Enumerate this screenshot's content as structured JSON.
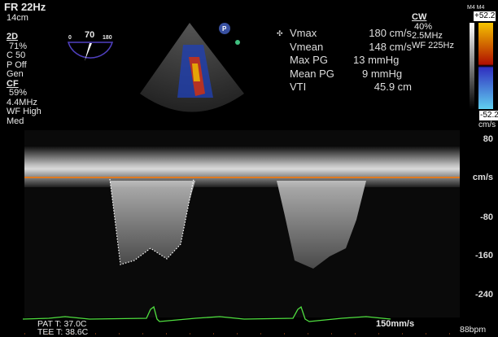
{
  "header": {
    "frame_rate": "FR 22Hz",
    "depth": "14cm"
  },
  "mode_2d": {
    "title": "2D",
    "gain": "71%",
    "compression": "C 50",
    "persistence": "P Off",
    "preset": "Gen"
  },
  "color_flow": {
    "title": "CF",
    "gain": "59%",
    "frequency": "4.4MHz",
    "wall_filter": "WF High",
    "setting": "Med"
  },
  "angle_indicator": {
    "min": "0",
    "value": "70",
    "max": "180"
  },
  "probe_marker": "P",
  "measurements": [
    {
      "label": "Vmax",
      "value": "180 cm/s"
    },
    {
      "label": "Vmean",
      "value": "148 cm/s"
    },
    {
      "label": "Max PG",
      "value": "13 mmHg"
    },
    {
      "label": "Mean PG",
      "value": "9 mmHg"
    },
    {
      "label": "VTI",
      "value": "45.9 cm"
    }
  ],
  "cw": {
    "title": "CW",
    "gain": "40%",
    "frequency": "2.5MHz",
    "wall_filter": "WF 225Hz"
  },
  "color_bar": {
    "maps": "M4 M4",
    "max": "+52.2",
    "min": "-52.2",
    "unit": "cm/s",
    "colors": [
      "#f5c400",
      "#b01000",
      "#3030c0",
      "#60d0f0"
    ]
  },
  "velocity_scale": {
    "labels": [
      "80",
      "cm/s",
      "-80",
      "-160",
      "-240"
    ]
  },
  "footer": {
    "pat_temp": "PAT T: 37.0C",
    "tee_temp": "TEE T: 38.6C",
    "sweep_speed": "150mm/s",
    "heart_rate": "88bpm"
  },
  "colors": {
    "baseline": "#e07a20",
    "ecg": "#50e040"
  }
}
